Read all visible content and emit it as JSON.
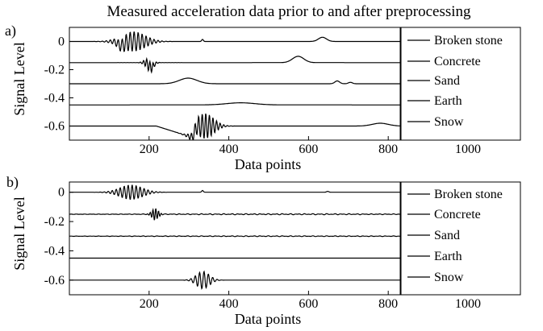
{
  "title": "Measured acceleration data prior to and after preprocessing",
  "chart_data": [
    {
      "panel_label": "a)",
      "type": "line",
      "xlabel": "Data points",
      "ylabel": "Signal Level",
      "xlim": [
        0,
        830
      ],
      "ylim": [
        -0.7,
        0.1
      ],
      "xticks": [
        200,
        400,
        600,
        800,
        1000
      ],
      "yticks": [
        0,
        -0.2,
        -0.4,
        -0.6
      ],
      "ytick_labels": [
        "0",
        "-0.2",
        "-0.4",
        "-0.6"
      ],
      "legend_position": "right-outside",
      "series": [
        {
          "name": "Broken stone",
          "offset": 0.0,
          "events": [
            {
              "kind": "bump",
              "at": 130,
              "amp": -0.03,
              "width": 8
            },
            {
              "kind": "burst",
              "at": 160,
              "amp": 0.07,
              "width": 30,
              "period": 10
            },
            {
              "kind": "spike",
              "at": 334,
              "amp": 0.015,
              "width": 2
            },
            {
              "kind": "bump",
              "at": 635,
              "amp": 0.03,
              "width": 10
            }
          ]
        },
        {
          "name": "Concrete",
          "offset": -0.15,
          "events": [
            {
              "kind": "burst",
              "at": 200,
              "amp": 0.04,
              "width": 10,
              "period": 8
            },
            {
              "kind": "bump",
              "at": 205,
              "amp": -0.035,
              "width": 6
            },
            {
              "kind": "bump",
              "at": 574,
              "amp": 0.045,
              "width": 14
            }
          ]
        },
        {
          "name": "Sand",
          "offset": -0.3,
          "events": [
            {
              "kind": "bump",
              "at": 298,
              "amp": 0.04,
              "width": 22
            },
            {
              "kind": "bump",
              "at": 672,
              "amp": 0.02,
              "width": 6
            },
            {
              "kind": "bump",
              "at": 705,
              "amp": 0.01,
              "width": 5
            }
          ]
        },
        {
          "name": "Earth",
          "offset": -0.45,
          "events": [
            {
              "kind": "bump",
              "at": 430,
              "amp": 0.015,
              "width": 35
            }
          ]
        },
        {
          "name": "Snow",
          "offset": -0.6,
          "events": [
            {
              "kind": "ramp",
              "at": 308,
              "amp": -0.08,
              "width": 90
            },
            {
              "kind": "burst",
              "at": 340,
              "amp": 0.09,
              "width": 22,
              "period": 9
            },
            {
              "kind": "bump",
              "at": 780,
              "amp": 0.02,
              "width": 20
            }
          ]
        }
      ]
    },
    {
      "panel_label": "b)",
      "type": "line",
      "xlabel": "Data points",
      "ylabel": "Signal Level",
      "xlim": [
        0,
        830
      ],
      "ylim": [
        -0.7,
        0.07
      ],
      "xticks": [
        200,
        400,
        600,
        800,
        1000
      ],
      "yticks": [
        0,
        -0.2,
        -0.4,
        -0.6
      ],
      "ytick_labels": [
        "0",
        "-0.2",
        "-0.4",
        "-0.6"
      ],
      "legend_position": "right-outside",
      "series": [
        {
          "name": "Broken stone",
          "offset": 0.0,
          "events": [
            {
              "kind": "burst",
              "at": 155,
              "amp": 0.05,
              "width": 28,
              "period": 10
            },
            {
              "kind": "spike",
              "at": 334,
              "amp": 0.012,
              "width": 2
            },
            {
              "kind": "spike",
              "at": 648,
              "amp": 0.006,
              "width": 3
            }
          ]
        },
        {
          "name": "Concrete",
          "offset": -0.15,
          "events": [
            {
              "kind": "burst",
              "at": 215,
              "amp": 0.04,
              "width": 8,
              "period": 7
            },
            {
              "kind": "wiggle",
              "at": 520,
              "amp": 0.004,
              "width": 320
            }
          ]
        },
        {
          "name": "Sand",
          "offset": -0.3,
          "events": [
            {
              "kind": "wiggle",
              "at": 500,
              "amp": 0.003,
              "width": 350
            }
          ]
        },
        {
          "name": "Earth",
          "offset": -0.45,
          "events": []
        },
        {
          "name": "Snow",
          "offset": -0.6,
          "events": [
            {
              "kind": "burst",
              "at": 335,
              "amp": 0.06,
              "width": 16,
              "period": 11
            }
          ]
        }
      ]
    }
  ]
}
